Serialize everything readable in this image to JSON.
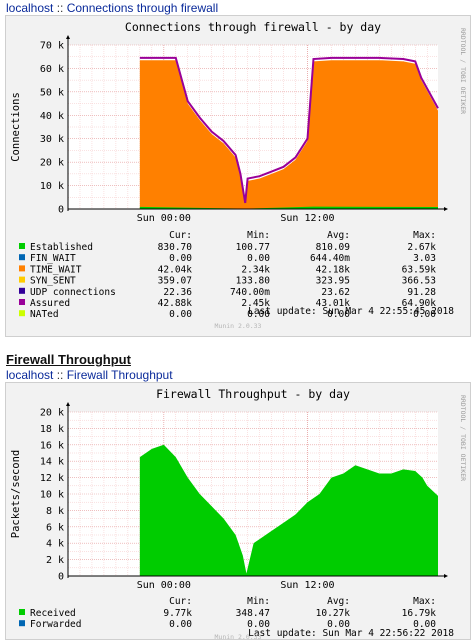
{
  "page": {
    "breadcrumb1": {
      "host": "localhost",
      "sep": " :: ",
      "name": "Connections through firewall"
    },
    "section2_title": "Firewall Throughput",
    "breadcrumb2": {
      "host": "localhost",
      "sep": " :: ",
      "name": "Firewall Throughput"
    }
  },
  "graphs": [
    {
      "id": "connections",
      "title": "Connections through firewall - by day",
      "ylabel": "Connections",
      "side_text": "RRDTOOL / TOBI OETIKER",
      "watermark": "Munin 2.0.33",
      "yticks": [
        "0",
        "10 k",
        "20 k",
        "30 k",
        "40 k",
        "50 k",
        "60 k",
        "70 k"
      ],
      "xticks": [
        "Sun 00:00",
        "Sun 12:00"
      ],
      "legend_header": [
        "Cur:",
        "Min:",
        "Avg:",
        "Max:"
      ],
      "legend": [
        {
          "name": "Established",
          "color": "#00cc00",
          "cur": "830.70",
          "min": "100.77",
          "avg": "810.09",
          "max": "2.67k"
        },
        {
          "name": "FIN_WAIT",
          "color": "#0066b3",
          "cur": "0.00",
          "min": "0.00",
          "avg": "644.40m",
          "max": "3.03"
        },
        {
          "name": "TIME_WAIT",
          "color": "#ff8000",
          "cur": "42.04k",
          "min": "2.34k",
          "avg": "42.18k",
          "max": "63.59k"
        },
        {
          "name": "SYN_SENT",
          "color": "#ffcc00",
          "cur": "359.07",
          "min": "133.80",
          "avg": "323.95",
          "max": "366.53"
        },
        {
          "name": "UDP connections",
          "color": "#330099",
          "cur": "22.36",
          "min": "740.00m",
          "avg": "23.62",
          "max": "91.28"
        },
        {
          "name": "Assured",
          "color": "#990099",
          "cur": "42.88k",
          "min": "2.45k",
          "avg": "43.01k",
          "max": "64.90k"
        },
        {
          "name": "NATed",
          "color": "#ccff00",
          "cur": "0.00",
          "min": "0.00",
          "avg": "0.00",
          "max": "0.00"
        }
      ],
      "last_update": "Last update: Sun Mar  4 22:55:45 2018"
    },
    {
      "id": "throughput",
      "title": "Firewall Throughput - by day",
      "ylabel": "Packets/second",
      "side_text": "RRDTOOL / TOBI OETIKER",
      "watermark": "Munin 2.0.33",
      "yticks": [
        "0",
        "2 k",
        "4 k",
        "6 k",
        "8 k",
        "10 k",
        "12 k",
        "14 k",
        "16 k",
        "18 k",
        "20 k"
      ],
      "xticks": [
        "Sun 00:00",
        "Sun 12:00"
      ],
      "legend_header": [
        "Cur:",
        "Min:",
        "Avg:",
        "Max:"
      ],
      "legend": [
        {
          "name": "Received",
          "color": "#00cc00",
          "cur": "9.77k",
          "min": "348.47",
          "avg": "10.27k",
          "max": "16.79k"
        },
        {
          "name": "Forwarded",
          "color": "#0066b3",
          "cur": "0.00",
          "min": "0.00",
          "avg": "0.00",
          "max": "0.00"
        }
      ],
      "last_update": "Last update: Sun Mar  4 22:56:22 2018"
    }
  ],
  "chart_data": [
    {
      "type": "area",
      "title": "Connections through firewall - by day",
      "ylabel": "Connections",
      "ylim": [
        0,
        70000
      ],
      "x_range_hours": [
        -8,
        22.9
      ],
      "grid": true,
      "series": [
        {
          "name": "TIME_WAIT",
          "color": "#ff8000",
          "x": [
            -2.0,
            0.0,
            1.0,
            2.0,
            3.0,
            4.0,
            5.0,
            6.0,
            6.4,
            6.8,
            7.0,
            8.0,
            9.0,
            10.0,
            11.0,
            12.0,
            12.5,
            14.0,
            16.0,
            18.0,
            20.0,
            21.0,
            21.5,
            22.9
          ],
          "y": [
            63500,
            63500,
            63500,
            45000,
            38000,
            32000,
            28000,
            22000,
            14000,
            2500,
            12000,
            13000,
            15000,
            17000,
            21000,
            29000,
            63000,
            63500,
            63500,
            63500,
            63000,
            62000,
            55000,
            42000
          ]
        },
        {
          "name": "Assured",
          "color": "#990099",
          "x": [
            -2.0,
            0.0,
            1.0,
            2.0,
            3.0,
            4.0,
            5.0,
            6.0,
            6.4,
            6.8,
            7.0,
            8.0,
            9.0,
            10.0,
            11.0,
            12.0,
            12.5,
            14.0,
            16.0,
            18.0,
            20.0,
            21.0,
            21.5,
            22.9
          ],
          "y": [
            64500,
            64500,
            64500,
            46000,
            39000,
            33000,
            29000,
            23000,
            15000,
            2600,
            13000,
            14000,
            16000,
            18000,
            22000,
            30000,
            64000,
            64500,
            64500,
            64500,
            64000,
            63000,
            56000,
            43000
          ]
        },
        {
          "name": "Established",
          "color": "#00cc00",
          "x": [
            -2.0,
            6.8,
            12.5,
            22.9
          ],
          "y": [
            900,
            150,
            1000,
            830
          ]
        }
      ]
    },
    {
      "type": "area",
      "title": "Firewall Throughput - by day",
      "ylabel": "Packets/second",
      "ylim": [
        0,
        20000
      ],
      "x_range_hours": [
        -8,
        22.9
      ],
      "grid": true,
      "series": [
        {
          "name": "Received",
          "color": "#00cc00",
          "x": [
            -2.0,
            -1.0,
            0.0,
            1.0,
            2.0,
            3.0,
            4.0,
            5.0,
            6.0,
            6.6,
            6.9,
            7.5,
            8.0,
            9.0,
            10.0,
            11.0,
            12.0,
            13.0,
            14.0,
            15.0,
            16.0,
            17.0,
            18.0,
            19.0,
            20.0,
            21.0,
            21.6,
            22.0,
            22.9
          ],
          "y": [
            14500,
            15500,
            16000,
            14500,
            12000,
            10000,
            8500,
            7000,
            5000,
            2500,
            300,
            4000,
            4500,
            5500,
            6500,
            7500,
            9000,
            10000,
            12000,
            12500,
            13500,
            13000,
            12500,
            12500,
            13000,
            12800,
            12000,
            11000,
            9770
          ]
        },
        {
          "name": "Forwarded",
          "color": "#0066b3",
          "x": [
            -2.0,
            22.9
          ],
          "y": [
            0,
            0
          ]
        }
      ]
    }
  ]
}
